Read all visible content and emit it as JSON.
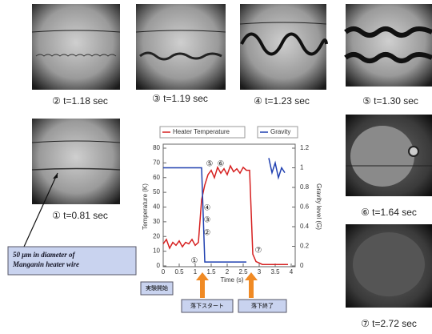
{
  "photos": [
    {
      "caption": "② t=1.18 sec"
    },
    {
      "caption": "③ t=1.19 sec"
    },
    {
      "caption": "④ t=1.23 sec"
    },
    {
      "caption": "⑤ t=1.30 sec"
    },
    {
      "caption": "① t=0.81 sec"
    },
    {
      "caption": "⑥ t=1.64 sec"
    },
    {
      "caption": "⑦ t=2.72 sec"
    }
  ],
  "note": [
    "50 μm in diameter of",
    "Manganin heater wire"
  ],
  "stage_labels": [
    "実験開始",
    "落下スタート",
    "落下終了"
  ],
  "chart_data": {
    "type": "line",
    "xlabel": "Time (s)",
    "ylabel": "Temperature (K)",
    "y2label": "Gravity level (G)",
    "x": [
      0,
      0.1,
      0.2,
      0.3,
      0.4,
      0.5,
      0.6,
      0.7,
      0.8,
      0.9,
      1.0,
      1.1,
      1.2,
      1.3,
      1.4,
      1.5,
      1.6,
      1.7,
      1.8,
      1.9,
      2.0,
      2.1,
      2.2,
      2.3,
      2.4,
      2.5,
      2.6,
      2.7,
      2.8,
      2.9,
      3.0,
      3.1,
      3.2,
      3.3,
      3.4,
      3.5,
      3.6,
      3.7,
      3.8,
      3.9
    ],
    "series": [
      {
        "name": "Heater Temperature",
        "color": "#d62020",
        "values": [
          15,
          18,
          12,
          16,
          14,
          17,
          13,
          16,
          15,
          18,
          14,
          16,
          45,
          55,
          62,
          65,
          60,
          67,
          63,
          66,
          62,
          68,
          64,
          66,
          63,
          67,
          65,
          65,
          8,
          3,
          2,
          1,
          1,
          1,
          1,
          1,
          1,
          1,
          1,
          1
        ]
      },
      {
        "name": "Gravity",
        "color": "#2040b0",
        "axis": "y2",
        "values": [
          1.0,
          1.0,
          1.0,
          1.0,
          1.0,
          1.0,
          1.0,
          1.0,
          1.0,
          1.0,
          1.0,
          1.0,
          1.0,
          0.04,
          0.04,
          0.04,
          0.04,
          0.04,
          0.04,
          0.04,
          0.04,
          0.04,
          0.04,
          0.04,
          0.04,
          0.04,
          0.04,
          null,
          null,
          null,
          null,
          null,
          null,
          1.1,
          0.95,
          1.05,
          0.9,
          1.0,
          0.95,
          null
        ]
      }
    ],
    "xlim": [
      0,
      4
    ],
    "xticks": [
      0,
      0.5,
      1,
      1.5,
      2,
      2.5,
      3,
      3.5,
      4
    ],
    "ylim": [
      0,
      80
    ],
    "yticks": [
      0,
      10,
      20,
      30,
      40,
      50,
      60,
      70,
      80
    ],
    "y2lim": [
      0,
      1.2
    ],
    "y2ticks": [
      0,
      0.2,
      0.4,
      0.6,
      0.8,
      1,
      1.2
    ],
    "annotations": [
      "①",
      "②",
      "③",
      "④",
      "⑤",
      "⑥",
      "⑦"
    ]
  }
}
